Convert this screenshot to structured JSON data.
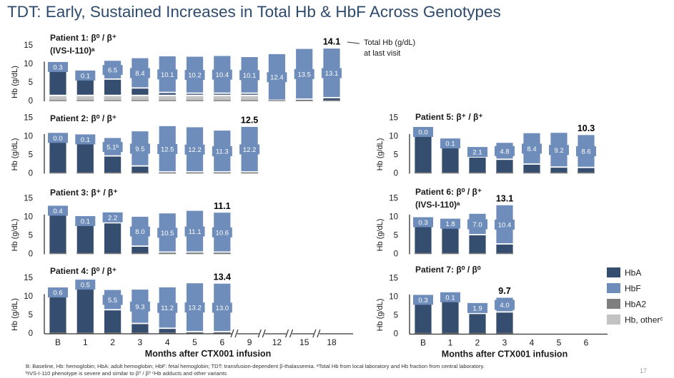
{
  "title": "TDT: Early, Sustained Increases in Total Hb & HbF Across Genotypes",
  "annotation": {
    "line1": "Total Hb (g/dL)",
    "line2": "at last visit"
  },
  "legend": [
    {
      "label": "HbA",
      "color": "#354d6e"
    },
    {
      "label": "HbF",
      "color": "#6e8dba"
    },
    {
      "label": "HbA2",
      "color": "#7f7f7f"
    },
    {
      "label": "Hb, otherᶜ",
      "color": "#c3c3c3"
    }
  ],
  "footnotes": {
    "line1": "B: Baseline, Hb: hemoglobin; HbA: adult hemoglobin; HbF: fetal hemoglobin; TDT: transfusion-dependent β-thalassemia. ᵃTotal Hb from local laboratory and Hb fraction from central laboratory.",
    "line2": "ᵇIVS-I-110 phenotype is severe and similar to β⁰ / β⁰ ᶜHb adducts and other variants"
  },
  "page_number": "17",
  "chart_data": [
    {
      "type": "bar",
      "stacked": true,
      "title": "Patient 1: β⁰ / β⁺",
      "title2": "(IVS-I-110)ᵃ",
      "ylabel": "Hb (g/dL)",
      "ylim": [
        0,
        15
      ],
      "yticks": [
        0,
        5,
        10,
        15
      ],
      "categories": [
        "B",
        "1",
        "2",
        "3",
        "4",
        "5",
        "6",
        "9",
        "12",
        "15",
        "18"
      ],
      "total": [
        10.4,
        8.1,
        10.8,
        11.5,
        12.0,
        11.9,
        12.1,
        11.8,
        12.6,
        14.0,
        14.1
      ],
      "hba": [
        7.3,
        5.1,
        4.2,
        1.8,
        0.6,
        0.4,
        0.4,
        0.4,
        0,
        0.3,
        0.7
      ],
      "hbf_labels": [
        "0.3",
        "0.1",
        "6.5",
        "8.4",
        "10.1",
        "10.2",
        "10.4",
        "10.1",
        "12.4",
        "13.5",
        "13.1"
      ],
      "other": [
        1.2,
        1.2,
        1.2,
        1.2,
        1.2,
        1.2,
        1.2,
        1.2,
        0,
        0,
        0
      ],
      "last_total": "14.1"
    },
    {
      "type": "bar",
      "stacked": true,
      "title": "Patient 2: β⁰ / β⁺",
      "ylabel": "Hb (g/dL)",
      "ylim": [
        0,
        15
      ],
      "yticks": [
        0,
        5,
        10,
        15
      ],
      "categories": [
        "B",
        "1",
        "2",
        "3",
        "4",
        "5",
        "6",
        "9"
      ],
      "total": [
        10.8,
        10.4,
        9.5,
        11.3,
        12.7,
        12.4,
        11.5,
        12.5
      ],
      "hba": [
        9.1,
        8.6,
        4.5,
        1.8,
        0.2,
        0.2,
        0.2,
        0.2
      ],
      "hbf_labels": [
        "0.0",
        "0.1",
        "5.1ᵇ",
        "9.5",
        "12.5",
        "12.2",
        "11.3",
        "12.2"
      ],
      "other": [
        0,
        0,
        0,
        0,
        0,
        0,
        0,
        0
      ],
      "last_total": "12.5"
    },
    {
      "type": "bar",
      "stacked": true,
      "title": "Patient 3: β⁺ / β⁺",
      "ylabel": "Hb (g/dL)",
      "ylim": [
        0,
        15
      ],
      "yticks": [
        0,
        5,
        10,
        15
      ],
      "categories": [
        "B",
        "1",
        "2",
        "3",
        "4",
        "5",
        "6"
      ],
      "total": [
        12.9,
        10.1,
        11.1,
        10.0,
        10.9,
        11.6,
        11.1
      ],
      "hba": [
        10.9,
        8.4,
        8.2,
        1.9,
        0.3,
        0.3,
        0.3
      ],
      "hbf_labels": [
        "0.4",
        "0.1",
        "2.2",
        "8.0",
        "10.5",
        "11.1",
        "10.6"
      ],
      "other": [
        0,
        0,
        0,
        0,
        0,
        0,
        0
      ],
      "last_total": "11.1"
    },
    {
      "type": "bar",
      "stacked": true,
      "title": "Patient 4: β⁰ / β⁺",
      "ylabel": "Hb (g/dL)",
      "ylim": [
        0,
        15
      ],
      "yticks": [
        0,
        5,
        10,
        15
      ],
      "categories": [
        "B",
        "1",
        "2",
        "3",
        "4",
        "5",
        "6"
      ],
      "total": [
        12.3,
        14.4,
        11.7,
        11.8,
        12.4,
        13.5,
        13.4
      ],
      "hba": [
        10.4,
        12.4,
        6.2,
        2.5,
        1.2,
        0.3,
        0.3
      ],
      "hbf_labels": [
        "0.6",
        "0.5",
        "5.5",
        "9.3",
        "11.2",
        "13.2",
        "13.0"
      ],
      "other": [
        0,
        0,
        0,
        0,
        0,
        0,
        0
      ],
      "last_total": "13.4",
      "xticks": [
        "B",
        "1",
        "2",
        "3",
        "4",
        "5",
        "6",
        "9",
        "12",
        "15",
        "18"
      ],
      "xlabel": "Months after CTX001 infusion"
    },
    {
      "type": "bar",
      "stacked": true,
      "title": "Patient 5: β⁺ / β⁺",
      "ylabel": "Hb (g/dL)",
      "ylim": [
        0,
        15
      ],
      "yticks": [
        0,
        5,
        10,
        15
      ],
      "categories": [
        "B",
        "1",
        "2",
        "3",
        "4",
        "5",
        "6"
      ],
      "total": [
        12.4,
        9.3,
        7.0,
        8.2,
        10.8,
        10.9,
        10.3
      ],
      "hba": [
        10.8,
        7.5,
        4.2,
        3.6,
        2.3,
        1.5,
        1.4
      ],
      "hbf_labels": [
        "0.0",
        "0.1",
        "2.1",
        "4.8",
        "8.4",
        "9.2",
        "8.6"
      ],
      "other": [
        0,
        0,
        0,
        0,
        0,
        0,
        0
      ],
      "last_total": "10.3"
    },
    {
      "type": "bar",
      "stacked": true,
      "title": "Patient 6: β⁰ / β⁺",
      "title2": "(IVS-I-110)ᵃ",
      "ylabel": "Hb (g/dL)",
      "ylim": [
        0,
        15
      ],
      "yticks": [
        0,
        5,
        10,
        15
      ],
      "categories": [
        "B",
        "1",
        "2",
        "3"
      ],
      "total": [
        9.8,
        9.4,
        10.8,
        13.1
      ],
      "hba": [
        7.9,
        6.8,
        5.0,
        2.5
      ],
      "hbf_labels": [
        "0.3",
        "1.8",
        "7.0",
        "10.4"
      ],
      "other": [
        0,
        0,
        0,
        0
      ],
      "last_total": "13.1"
    },
    {
      "type": "bar",
      "stacked": true,
      "title": "Patient 7: β⁰ / β⁰",
      "ylabel": "Hb (g/dL)",
      "ylim": [
        0,
        15
      ],
      "yticks": [
        0,
        5,
        10,
        15
      ],
      "categories": [
        "B",
        "1",
        "2",
        "3"
      ],
      "total": [
        10.4,
        11.1,
        8.2,
        9.7
      ],
      "hba": [
        8.6,
        9.4,
        5.3,
        5.7
      ],
      "hbf_labels": [
        "0.3",
        "0.1",
        "1.9",
        "4.0"
      ],
      "other": [
        0,
        0,
        0,
        0
      ],
      "last_total": "9.7",
      "xticks": [
        "B",
        "1",
        "2",
        "3",
        "4",
        "5",
        "6"
      ],
      "xlabel": "Months after CTX001 infusion"
    }
  ]
}
